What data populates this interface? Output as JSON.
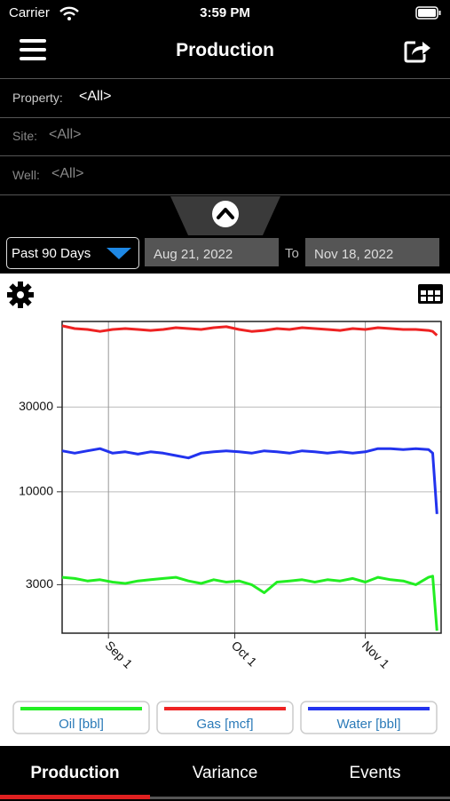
{
  "status": {
    "carrier": "Carrier",
    "time": "3:59 PM"
  },
  "header": {
    "title": "Production"
  },
  "filters": [
    {
      "label": "Property:",
      "value": "<All>"
    },
    {
      "label": "Site:",
      "value": "<All>"
    },
    {
      "label": "Well:",
      "value": "<All>"
    }
  ],
  "date_range": {
    "preset": "Past 90 Days",
    "start": "Aug 21, 2022",
    "to": "To",
    "end": "Nov 18, 2022"
  },
  "tabs": [
    "Production",
    "Variance",
    "Events"
  ],
  "chart_data": {
    "type": "line",
    "yscale": "log",
    "grid": true,
    "x": [
      "2022-08-21",
      "2022-08-24",
      "2022-08-27",
      "2022-08-30",
      "2022-09-02",
      "2022-09-05",
      "2022-09-08",
      "2022-09-11",
      "2022-09-14",
      "2022-09-17",
      "2022-09-20",
      "2022-09-23",
      "2022-09-26",
      "2022-09-29",
      "2022-10-02",
      "2022-10-05",
      "2022-10-08",
      "2022-10-11",
      "2022-10-14",
      "2022-10-17",
      "2022-10-20",
      "2022-10-23",
      "2022-10-26",
      "2022-10-29",
      "2022-11-01",
      "2022-11-04",
      "2022-11-07",
      "2022-11-10",
      "2022-11-13",
      "2022-11-16",
      "2022-11-17",
      "2022-11-18"
    ],
    "xlim": [
      "2022-08-21",
      "2022-11-19"
    ],
    "xticks": [
      {
        "value": "2022-09-01",
        "label": "Sep 1"
      },
      {
        "value": "2022-10-01",
        "label": "Oct 1"
      },
      {
        "value": "2022-11-01",
        "label": "Nov 1"
      }
    ],
    "ylim": [
      1600,
      91000
    ],
    "yticks": [
      3000,
      10000,
      30000
    ],
    "series": [
      {
        "name": "Oil [bbl]",
        "color": "#22ee22",
        "values": [
          3300,
          3250,
          3150,
          3200,
          3100,
          3050,
          3150,
          3200,
          3250,
          3300,
          3150,
          3050,
          3200,
          3100,
          3150,
          3000,
          2700,
          3100,
          3150,
          3200,
          3100,
          3200,
          3150,
          3250,
          3100,
          3300,
          3200,
          3150,
          3000,
          3300,
          3350,
          1650
        ]
      },
      {
        "name": "Gas [mcf]",
        "color": "#ee2222",
        "values": [
          86000,
          83000,
          82000,
          80000,
          82000,
          83000,
          82000,
          81000,
          82000,
          84000,
          83000,
          82000,
          84000,
          85000,
          82000,
          80000,
          81000,
          83000,
          82000,
          84000,
          83000,
          82000,
          81000,
          83000,
          82000,
          84000,
          83000,
          82000,
          82000,
          81000,
          80000,
          76000
        ]
      },
      {
        "name": "Water [bbl]",
        "color": "#2233ee",
        "values": [
          17000,
          16500,
          17000,
          17500,
          16500,
          16800,
          16300,
          16800,
          16500,
          16000,
          15500,
          16500,
          16800,
          17000,
          16800,
          16500,
          17000,
          16800,
          16500,
          17000,
          16800,
          16500,
          16800,
          16500,
          16800,
          17500,
          17500,
          17300,
          17500,
          17300,
          16500,
          7500
        ]
      }
    ]
  }
}
